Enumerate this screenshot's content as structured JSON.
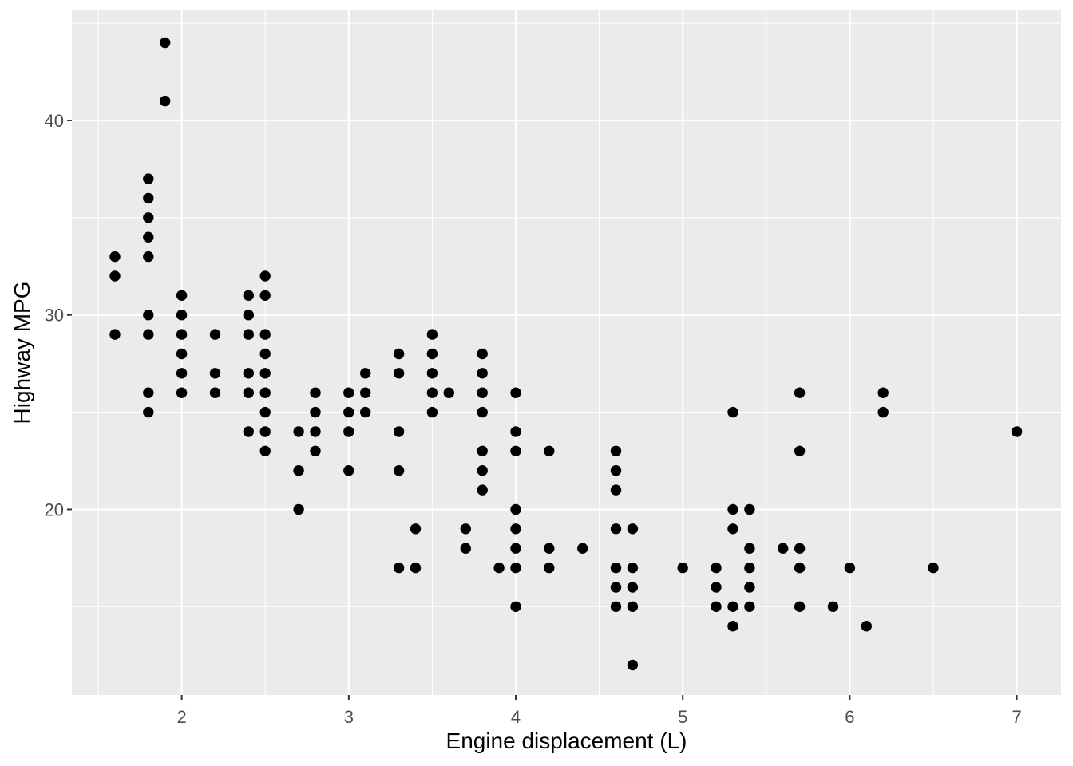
{
  "figure": {
    "background": "#FFFFFF"
  },
  "chart_data": {
    "type": "scatter",
    "title": "",
    "xlabel": "Engine displacement (L)",
    "ylabel": "Highway MPG",
    "x_ticks": [
      2,
      3,
      4,
      5,
      6,
      7
    ],
    "y_ticks": [
      20,
      30,
      40
    ],
    "x_minor_ticks": [
      1.5,
      2.5,
      3.5,
      4.5,
      5.5,
      6.5
    ],
    "y_minor_ticks": [
      15,
      25,
      35,
      45
    ],
    "xlim": [
      1.342,
      7.265
    ],
    "ylim": [
      10.46,
      45.66
    ],
    "grid": "on",
    "legend": "none",
    "style": {
      "panel_bg": "#EBEBEB",
      "grid_color": "#FFFFFF",
      "point_color": "#000000",
      "tick_label_color": "#4D4D4D",
      "axis_title_color": "#000000",
      "tick_mark_color": "#333333"
    },
    "points": [
      [
        1.6,
        33
      ],
      [
        1.6,
        32
      ],
      [
        1.6,
        29
      ],
      [
        1.8,
        37
      ],
      [
        1.8,
        36
      ],
      [
        1.8,
        35
      ],
      [
        1.8,
        34
      ],
      [
        1.8,
        33
      ],
      [
        1.8,
        30
      ],
      [
        1.8,
        29
      ],
      [
        1.8,
        26
      ],
      [
        1.8,
        25
      ],
      [
        1.9,
        44
      ],
      [
        1.9,
        41
      ],
      [
        2.0,
        31
      ],
      [
        2.0,
        30
      ],
      [
        2.0,
        29
      ],
      [
        2.0,
        28
      ],
      [
        2.0,
        27
      ],
      [
        2.0,
        26
      ],
      [
        2.2,
        29
      ],
      [
        2.2,
        27
      ],
      [
        2.2,
        26
      ],
      [
        2.4,
        31
      ],
      [
        2.4,
        30
      ],
      [
        2.4,
        29
      ],
      [
        2.4,
        27
      ],
      [
        2.4,
        26
      ],
      [
        2.4,
        24
      ],
      [
        2.5,
        32
      ],
      [
        2.5,
        31
      ],
      [
        2.5,
        29
      ],
      [
        2.5,
        28
      ],
      [
        2.5,
        27
      ],
      [
        2.5,
        26
      ],
      [
        2.5,
        25
      ],
      [
        2.5,
        24
      ],
      [
        2.5,
        23
      ],
      [
        2.7,
        24
      ],
      [
        2.7,
        22
      ],
      [
        2.7,
        20
      ],
      [
        2.8,
        26
      ],
      [
        2.8,
        25
      ],
      [
        2.8,
        24
      ],
      [
        2.8,
        23
      ],
      [
        3.0,
        26
      ],
      [
        3.0,
        25
      ],
      [
        3.0,
        24
      ],
      [
        3.0,
        22
      ],
      [
        3.1,
        27
      ],
      [
        3.1,
        26
      ],
      [
        3.1,
        25
      ],
      [
        3.3,
        28
      ],
      [
        3.3,
        27
      ],
      [
        3.3,
        24
      ],
      [
        3.3,
        22
      ],
      [
        3.3,
        17
      ],
      [
        3.4,
        19
      ],
      [
        3.4,
        17
      ],
      [
        3.5,
        29
      ],
      [
        3.5,
        28
      ],
      [
        3.5,
        27
      ],
      [
        3.5,
        26
      ],
      [
        3.5,
        25
      ],
      [
        3.6,
        26
      ],
      [
        3.7,
        19
      ],
      [
        3.7,
        18
      ],
      [
        3.8,
        28
      ],
      [
        3.8,
        27
      ],
      [
        3.8,
        26
      ],
      [
        3.8,
        25
      ],
      [
        3.8,
        23
      ],
      [
        3.8,
        22
      ],
      [
        3.8,
        21
      ],
      [
        3.9,
        17
      ],
      [
        4.0,
        26
      ],
      [
        4.0,
        24
      ],
      [
        4.0,
        23
      ],
      [
        4.0,
        20
      ],
      [
        4.0,
        19
      ],
      [
        4.0,
        18
      ],
      [
        4.0,
        17
      ],
      [
        4.0,
        15
      ],
      [
        4.2,
        23
      ],
      [
        4.2,
        18
      ],
      [
        4.2,
        17
      ],
      [
        4.4,
        18
      ],
      [
        4.6,
        23
      ],
      [
        4.6,
        22
      ],
      [
        4.6,
        21
      ],
      [
        4.6,
        19
      ],
      [
        4.6,
        17
      ],
      [
        4.6,
        16
      ],
      [
        4.6,
        15
      ],
      [
        4.7,
        19
      ],
      [
        4.7,
        17
      ],
      [
        4.7,
        16
      ],
      [
        4.7,
        15
      ],
      [
        4.7,
        12
      ],
      [
        5.0,
        17
      ],
      [
        5.2,
        17
      ],
      [
        5.2,
        16
      ],
      [
        5.2,
        15
      ],
      [
        5.3,
        25
      ],
      [
        5.3,
        20
      ],
      [
        5.3,
        19
      ],
      [
        5.3,
        15
      ],
      [
        5.3,
        14
      ],
      [
        5.4,
        20
      ],
      [
        5.4,
        18
      ],
      [
        5.4,
        17
      ],
      [
        5.4,
        16
      ],
      [
        5.4,
        15
      ],
      [
        5.6,
        18
      ],
      [
        5.7,
        26
      ],
      [
        5.7,
        23
      ],
      [
        5.7,
        18
      ],
      [
        5.7,
        17
      ],
      [
        5.7,
        15
      ],
      [
        5.9,
        15
      ],
      [
        6.0,
        17
      ],
      [
        6.1,
        14
      ],
      [
        6.2,
        26
      ],
      [
        6.2,
        25
      ],
      [
        6.5,
        17
      ],
      [
        7.0,
        24
      ]
    ]
  }
}
